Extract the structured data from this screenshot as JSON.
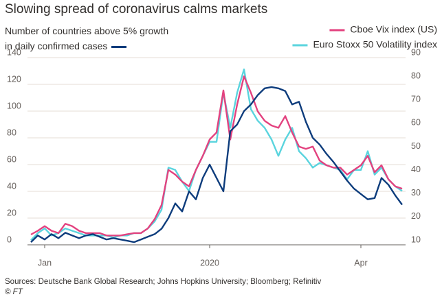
{
  "chart_data": {
    "type": "line",
    "title": "Slowing spread of coronavirus calms markets",
    "source": "Sources: Deutsche Bank Global Research; Johns Hopkins University; Bloomberg; Refinitiv",
    "credit": "© FT",
    "categories": [
      null,
      null,
      "Jan",
      null,
      null,
      null,
      null,
      null,
      null,
      null,
      null,
      null,
      null,
      null,
      null,
      null,
      null,
      null,
      null,
      null,
      null,
      null,
      null,
      null,
      null,
      null,
      "2020",
      null,
      null,
      null,
      null,
      null,
      null,
      null,
      null,
      null,
      null,
      null,
      null,
      null,
      null,
      null,
      null,
      null,
      null,
      null,
      null,
      null,
      "Apr",
      null,
      null,
      null,
      null,
      null,
      null
    ],
    "series": [
      {
        "name": "Number of countries above 5% growth in daily confirmed cases",
        "color": "#0d3c7c",
        "values": [
          2,
          7,
          4,
          8,
          5,
          9,
          7,
          5,
          7,
          8,
          6,
          4,
          5,
          4,
          3,
          2,
          4,
          6,
          8,
          12,
          20,
          31,
          25,
          40,
          34,
          50,
          60,
          50,
          40,
          85,
          90,
          100,
          105,
          112,
          117,
          118,
          117,
          115,
          105,
          107,
          92,
          80,
          75,
          68,
          62,
          55,
          48,
          42,
          38,
          34,
          35,
          50,
          45,
          37,
          30
        ]
      },
      {
        "name": "Cboe Vix index (US)",
        "color": "#e3427f",
        "axis": "y2",
        "values": [
          14.4,
          16,
          18,
          16,
          15,
          19,
          18,
          16,
          15,
          15,
          15,
          14,
          14,
          14,
          14.5,
          15,
          15,
          17,
          21,
          27,
          42,
          40,
          37,
          35,
          42,
          48,
          55,
          58,
          76,
          55,
          70,
          82,
          75,
          67,
          63,
          61,
          60,
          65,
          58,
          52,
          51,
          52,
          46,
          44,
          43,
          43,
          40,
          42,
          44,
          48,
          41,
          44,
          38,
          35,
          34
        ]
      },
      {
        "name": "Euro Stoxx 50 Volatility index",
        "color": "#5ad4de",
        "axis": "y2",
        "values": [
          12,
          15,
          17,
          14,
          15,
          17,
          16,
          15,
          14,
          14,
          14,
          14,
          13,
          14,
          14,
          15,
          15,
          17,
          20,
          25,
          43,
          42,
          37,
          33,
          42,
          48,
          54,
          54,
          75,
          60,
          75,
          85,
          68,
          63,
          60,
          55,
          48,
          55,
          60,
          50,
          47,
          43,
          45,
          44,
          43,
          42,
          38,
          42,
          42,
          50,
          40,
          43,
          38,
          35,
          33
        ]
      }
    ],
    "ylim": [
      0,
      140
    ],
    "yticks": [
      0,
      20,
      40,
      60,
      80,
      100,
      120,
      140
    ],
    "y2lim": [
      10,
      90
    ],
    "y2ticks": [
      10,
      20,
      30,
      40,
      50,
      60,
      70,
      80,
      90
    ],
    "grid": true
  }
}
